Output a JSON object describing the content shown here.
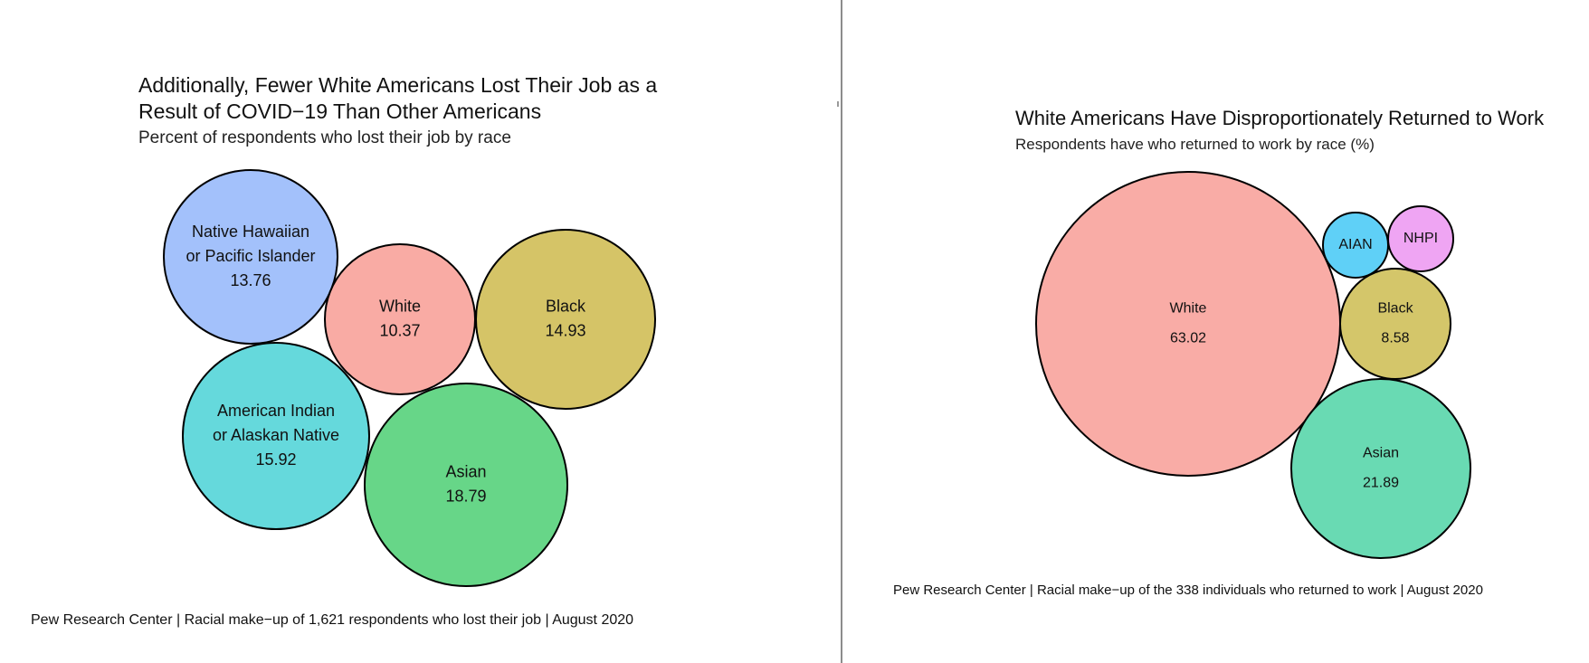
{
  "chart_data": [
    {
      "type": "bubble",
      "title": "Additionally, Fewer White Americans Lost Their Job as a Result of COVID−19 Than Other Americans",
      "title_lines": [
        "Additionally, Fewer White Americans Lost Their Job as a",
        "Result of COVID−19 Than Other Americans"
      ],
      "subtitle": "Percent of respondents who lost their job by race",
      "caption": "Pew Research Center | Racial make−up of 1,621 respondents who lost their job | August 2020",
      "unit": "percent",
      "points": [
        {
          "label_lines": [
            "Native Hawaiian",
            "or Pacific Islander"
          ],
          "value": 13.76,
          "value_text": "13.76",
          "color": "#a3c1fb"
        },
        {
          "label_lines": [
            "White"
          ],
          "value": 10.37,
          "value_text": "10.37",
          "color": "#f9aba4"
        },
        {
          "label_lines": [
            "Black"
          ],
          "value": 14.93,
          "value_text": "14.93",
          "color": "#d5c467"
        },
        {
          "label_lines": [
            "American Indian",
            "or Alaskan Native"
          ],
          "value": 15.92,
          "value_text": "15.92",
          "color": "#65d9dc"
        },
        {
          "label_lines": [
            "Asian"
          ],
          "value": 18.79,
          "value_text": "18.79",
          "color": "#67d688"
        }
      ]
    },
    {
      "type": "bubble",
      "title": "White Americans Have Disproportionately Returned to Work",
      "subtitle": "Respondents have who returned to work by race (%)",
      "caption": "Pew Research Center | Racial make−up of the 338 individuals who returned to work | August 2020",
      "unit": "percent",
      "points": [
        {
          "label_lines": [
            "White"
          ],
          "value": 63.02,
          "value_text": "63.02",
          "color": "#f9aca6"
        },
        {
          "label_lines": [
            "AIAN"
          ],
          "value": null,
          "value_text": "",
          "color": "#5fd0f7"
        },
        {
          "label_lines": [
            "NHPI"
          ],
          "value": null,
          "value_text": "",
          "color": "#efa5f3"
        },
        {
          "label_lines": [
            "Black"
          ],
          "value": 8.58,
          "value_text": "8.58",
          "color": "#d4c66a"
        },
        {
          "label_lines": [
            "Asian"
          ],
          "value": 21.89,
          "value_text": "21.89",
          "color": "#69dab3"
        }
      ]
    }
  ]
}
